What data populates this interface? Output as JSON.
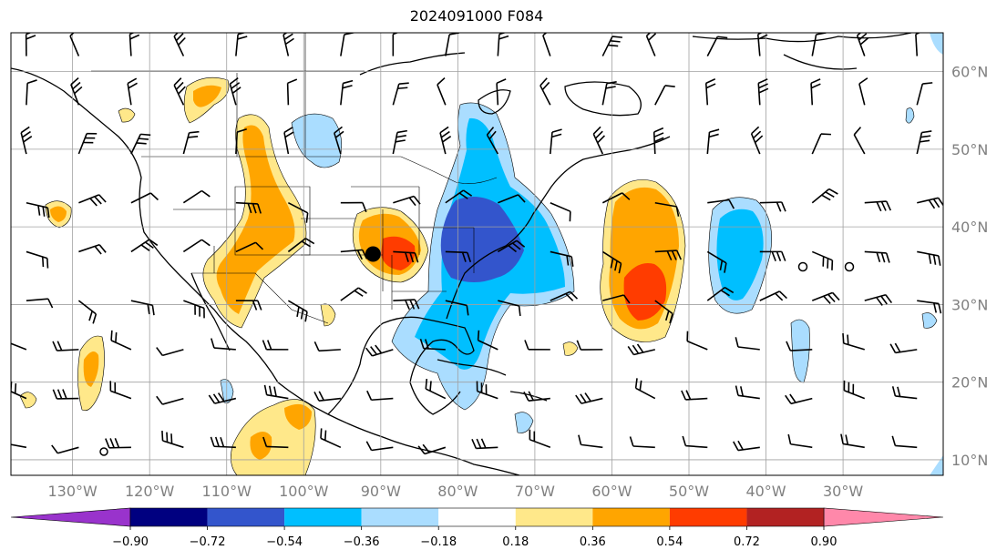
{
  "title": "2024091000 F084",
  "map": {
    "projection": "PlateCarree",
    "lon_range": [
      -138,
      -17
    ],
    "lat_range": [
      8,
      65
    ],
    "lat_ticks": [
      {
        "value": 60,
        "label": "60°N"
      },
      {
        "value": 50,
        "label": "50°N"
      },
      {
        "value": 40,
        "label": "40°N"
      },
      {
        "value": 30,
        "label": "30°N"
      },
      {
        "value": 20,
        "label": "20°N"
      },
      {
        "value": 10,
        "label": "10°N"
      }
    ],
    "lon_ticks": [
      {
        "value": -130,
        "label": "130°W"
      },
      {
        "value": -120,
        "label": "120°W"
      },
      {
        "value": -110,
        "label": "110°W"
      },
      {
        "value": -100,
        "label": "100°W"
      },
      {
        "value": -90,
        "label": "90°W"
      },
      {
        "value": -80,
        "label": "80°W"
      },
      {
        "value": -70,
        "label": "70°W"
      },
      {
        "value": -60,
        "label": "60°W"
      },
      {
        "value": -50,
        "label": "50°W"
      },
      {
        "value": -40,
        "label": "40°W"
      },
      {
        "value": -30,
        "label": "30°W"
      }
    ],
    "gridlines": true,
    "marker": {
      "lon": -91,
      "lat": 36.5
    },
    "wind_barbs": true
  },
  "colorbar": {
    "extend": "both",
    "colors": [
      "#9933cc",
      "#000080",
      "#3355cc",
      "#00bfff",
      "#aaddff",
      "#ffffff",
      "#ffe88a",
      "#ffa500",
      "#ff3c00",
      "#b22222",
      "#ff88aa"
    ],
    "tick_labels": [
      "−0.90",
      "−0.72",
      "−0.54",
      "−0.36",
      "−0.18",
      "0.18",
      "0.36",
      "0.54",
      "0.72",
      "0.90"
    ]
  }
}
